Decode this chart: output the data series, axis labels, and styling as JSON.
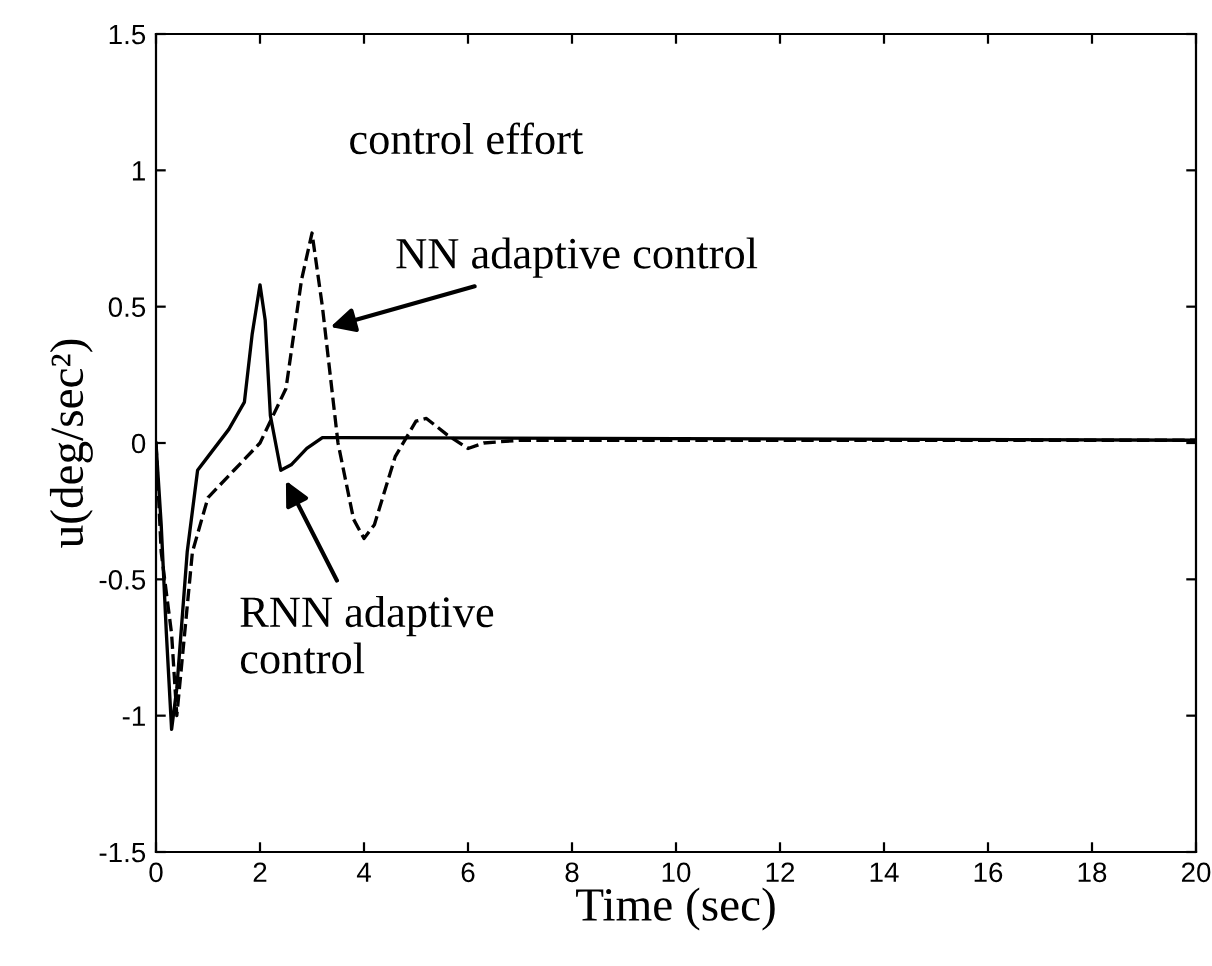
{
  "chart_data": {
    "type": "line",
    "xlabel": "Time (sec)",
    "ylabel": "u(deg/sec²)",
    "xlim": [
      0,
      20
    ],
    "ylim": [
      -1.5,
      1.5
    ],
    "xticks": [
      0,
      2,
      4,
      6,
      8,
      10,
      12,
      14,
      16,
      18,
      20
    ],
    "yticks": [
      -1.5,
      -1,
      -0.5,
      0,
      0.5,
      1,
      1.5
    ],
    "grid": false,
    "legend": false,
    "marker": "none",
    "annotations": [
      {
        "text": "control effort"
      },
      {
        "text": "RNN adaptive\ncontrol",
        "x": 2.45,
        "y": -0.12
      },
      {
        "text": "NN adaptive control",
        "x": 3.25,
        "y": 0.42
      }
    ],
    "series": [
      {
        "color": "#000000",
        "line_style": "solid",
        "x": [
          0,
          0.1,
          0.2,
          0.3,
          0.4,
          0.6,
          0.8,
          1.0,
          1.4,
          1.7,
          1.85,
          2.0,
          2.1,
          2.2,
          2.4,
          2.6,
          2.9,
          3.2,
          3.5,
          20
        ],
        "values": [
          0,
          -0.3,
          -0.7,
          -1.05,
          -0.9,
          -0.4,
          -0.1,
          -0.05,
          0.05,
          0.15,
          0.4,
          0.58,
          0.45,
          0.1,
          -0.1,
          -0.08,
          -0.02,
          0.02,
          0.02,
          0.01
        ]
      },
      {
        "color": "#000000",
        "line_style": "dashed",
        "x": [
          0,
          0.1,
          0.3,
          0.4,
          0.5,
          0.7,
          1.0,
          1.5,
          2.0,
          2.5,
          2.8,
          3.0,
          3.2,
          3.5,
          3.8,
          4.0,
          4.2,
          4.6,
          5.0,
          5.2,
          5.6,
          6.0,
          6.3,
          7.0,
          20
        ],
        "values": [
          0,
          -0.4,
          -0.7,
          -1.0,
          -0.8,
          -0.4,
          -0.2,
          -0.1,
          0.0,
          0.2,
          0.6,
          0.77,
          0.5,
          0.0,
          -0.28,
          -0.35,
          -0.3,
          -0.05,
          0.08,
          0.09,
          0.03,
          -0.02,
          0.0,
          0.01,
          0.01
        ]
      }
    ]
  }
}
